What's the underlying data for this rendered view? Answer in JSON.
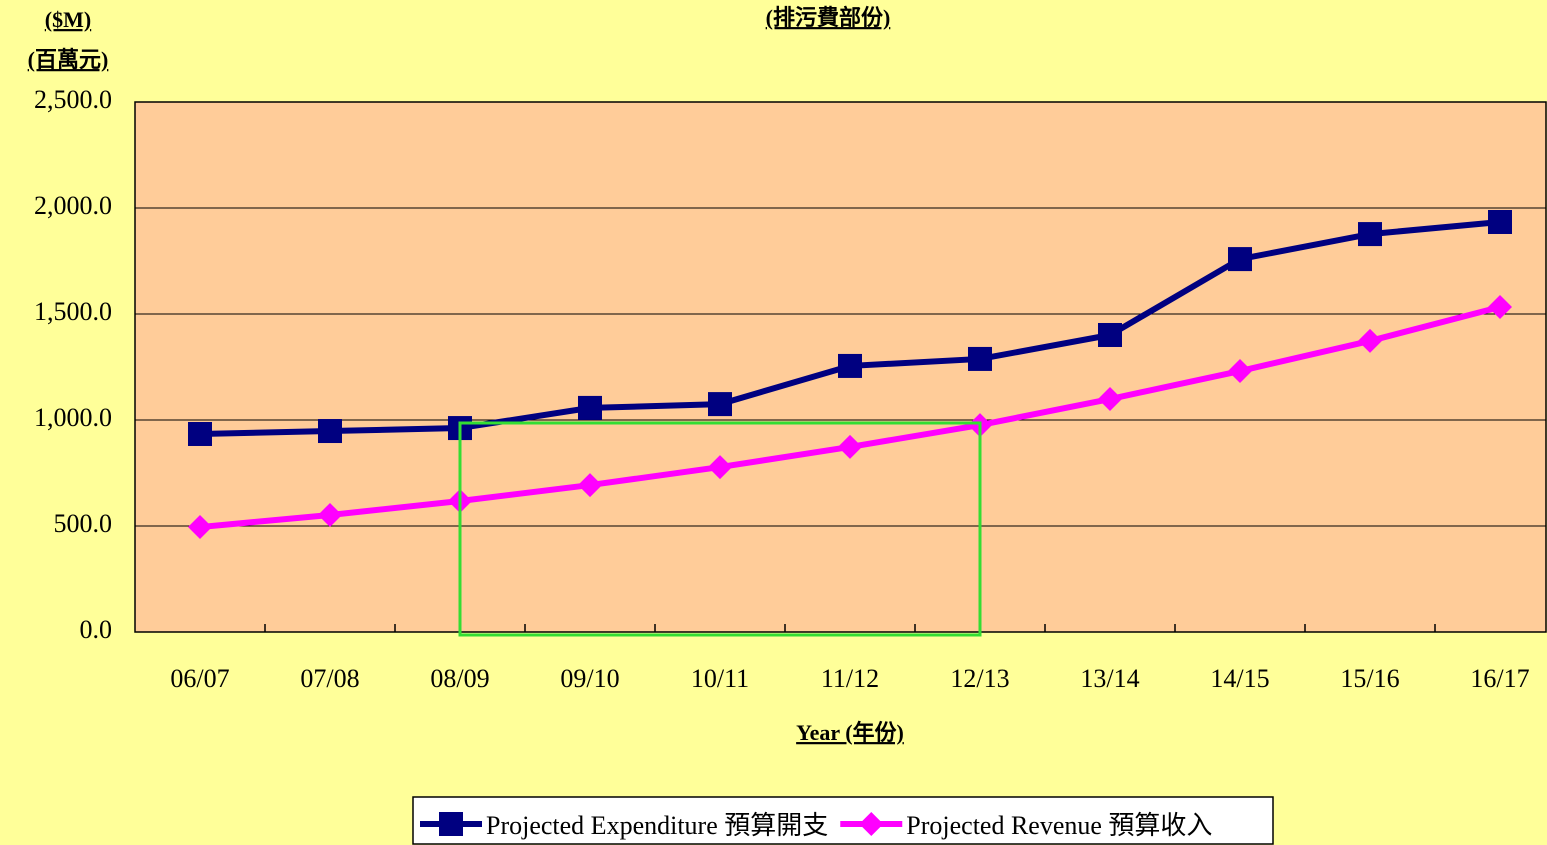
{
  "chart_data": {
    "type": "line",
    "title": "(排污費部份)",
    "y_label": [
      "($M)",
      "(百萬元)"
    ],
    "x_label": "Year (年份)",
    "categories": [
      "06/07",
      "07/08",
      "08/09",
      "09/10",
      "10/11",
      "11/12",
      "12/13",
      "13/14",
      "14/15",
      "15/16",
      "16/17"
    ],
    "series": [
      {
        "name": "Projected Expenditure 預算開支",
        "color": "#000080",
        "marker": "square",
        "values": [
          934,
          948,
          962,
          1057,
          1075,
          1255,
          1288,
          1401,
          1759,
          1877,
          1934
        ]
      },
      {
        "name": "Projected Revenue 預算收入",
        "color": "#ff00ff",
        "marker": "diamond",
        "values": [
          495,
          552,
          618,
          693,
          778,
          873,
          976,
          1099,
          1231,
          1373,
          1533
        ]
      }
    ],
    "ylim": [
      0,
      2500
    ],
    "yticks": [
      {
        "value": 0,
        "label": "0.0"
      },
      {
        "value": 500,
        "label": "500.0"
      },
      {
        "value": 1000,
        "label": "1,000.0"
      },
      {
        "value": 1500,
        "label": "1,500.0"
      },
      {
        "value": 2000,
        "label": "2,000.0"
      },
      {
        "value": 2500,
        "label": "2,500.0"
      }
    ],
    "grid": true,
    "legend": "bottom"
  }
}
